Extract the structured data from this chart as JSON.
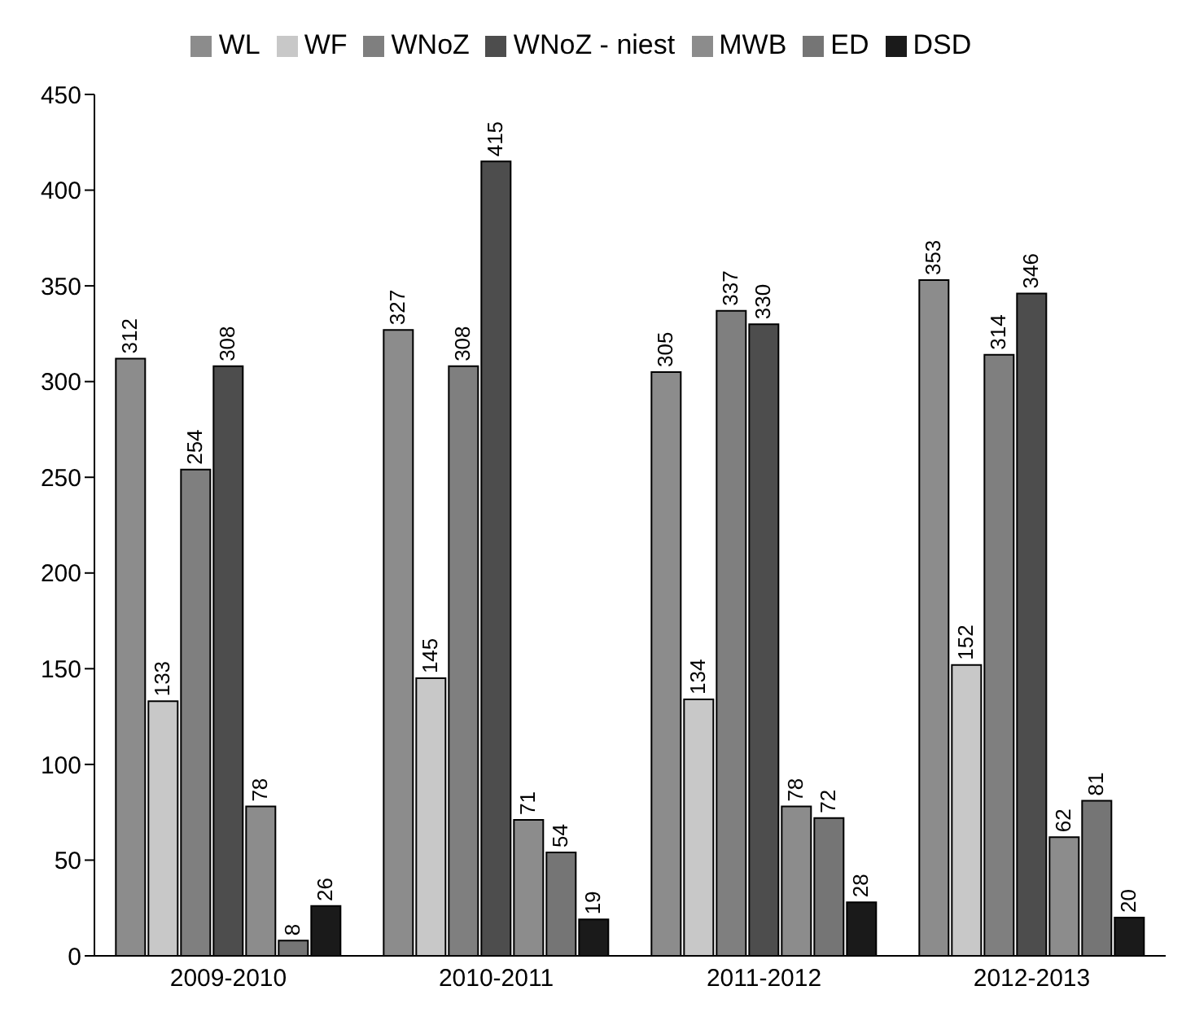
{
  "chart_data": {
    "type": "bar",
    "categories": [
      "2009-2010",
      "2010-2011",
      "2011-2012",
      "2012-2013"
    ],
    "series": [
      {
        "name": "WL",
        "color": "#8c8c8c",
        "values": [
          312,
          327,
          305,
          353
        ]
      },
      {
        "name": "WF",
        "color": "#c8c8c8",
        "values": [
          133,
          145,
          134,
          152
        ]
      },
      {
        "name": "WNoZ",
        "color": "#7f7f7f",
        "values": [
          254,
          308,
          337,
          314
        ]
      },
      {
        "name": "WNoZ - niest",
        "color": "#4d4d4d",
        "values": [
          308,
          415,
          330,
          346
        ]
      },
      {
        "name": "MWB",
        "color": "#8c8c8c",
        "values": [
          78,
          71,
          78,
          62
        ]
      },
      {
        "name": "ED",
        "color": "#757575",
        "values": [
          8,
          54,
          72,
          81
        ]
      },
      {
        "name": "DSD",
        "color": "#1a1a1a",
        "values": [
          26,
          19,
          28,
          20
        ]
      }
    ],
    "ylim": [
      0,
      450
    ],
    "yticks": [
      0,
      50,
      100,
      150,
      200,
      250,
      300,
      350,
      400,
      450
    ],
    "grid": false,
    "legend": "top",
    "data_labels": true
  }
}
